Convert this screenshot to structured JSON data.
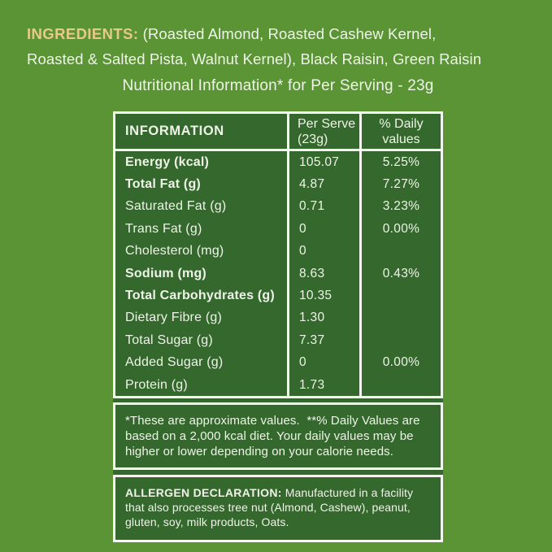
{
  "theme": {
    "bg": "#5b9434",
    "panel": "#35682d",
    "border": "#f5f7f1",
    "gold": "#e9c987",
    "text": "#eff4e9"
  },
  "ingredients": {
    "label": "INGREDIENTS:",
    "line1": " (Roasted Almond, Roasted Cashew Kernel,",
    "line2": "Roasted & Salted Pista, Walnut Kernel), Black Raisin, Green Raisin"
  },
  "title": "Nutritional Information* for Per Serving - 23g",
  "table": {
    "headers": {
      "info": "INFORMATION",
      "per_serve": "Per Serve (23g)",
      "daily": "% Daily values"
    },
    "rows": [
      {
        "label": "Energy (kcal)",
        "bold": true,
        "per_serve": "105.07",
        "daily": "5.25%"
      },
      {
        "label": "Total Fat (g)",
        "bold": true,
        "per_serve": "4.87",
        "daily": "7.27%"
      },
      {
        "label": "Saturated Fat (g)",
        "bold": false,
        "per_serve": "0.71",
        "daily": "3.23%"
      },
      {
        "label": "Trans Fat (g)",
        "bold": false,
        "per_serve": "0",
        "daily": "0.00%"
      },
      {
        "label": "Cholesterol (mg)",
        "bold": false,
        "per_serve": "0",
        "daily": ""
      },
      {
        "label": "Sodium (mg)",
        "bold": true,
        "per_serve": "8.63",
        "daily": "0.43%"
      },
      {
        "label": "Total Carbohydrates (g)",
        "bold": true,
        "per_serve": "10.35",
        "daily": ""
      },
      {
        "label": "Dietary Fibre (g)",
        "bold": false,
        "per_serve": "1.30",
        "daily": ""
      },
      {
        "label": "Total Sugar (g)",
        "bold": false,
        "per_serve": "7.37",
        "daily": ""
      },
      {
        "label": "Added Sugar (g)",
        "bold": false,
        "per_serve": "0",
        "daily": "0.00%"
      },
      {
        "label": "Protein (g)",
        "bold": false,
        "per_serve": "1.73",
        "daily": ""
      }
    ]
  },
  "footnote": "*These are approximate values.  **% Daily Values are based on a 2,000 kcal diet. Your daily values may be higher or lower depending on your calorie needs.",
  "allergen": {
    "label": "ALLERGEN DECLARATION:",
    "text": " Manufactured in a facility that also processes tree nut (Almond, Cashew), peanut, gluten, soy, milk products, Oats."
  }
}
